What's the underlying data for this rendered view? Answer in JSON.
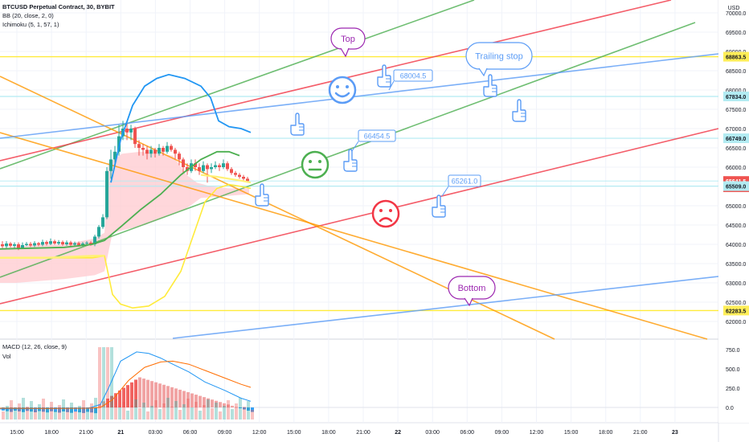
{
  "header": {
    "title": "BTCUSD Perpetual Contract, 30, BYBIT",
    "indicator_bb": "BB (20, close, 2, 0)",
    "indicator_ichimoku": "Ichimoku (5, 1, 57, 1)"
  },
  "price_axis": {
    "unit": "USD",
    "ticks": [
      "70000.0",
      "69500.0",
      "69000.0",
      "68500.0",
      "68000.0",
      "67500.0",
      "67000.0",
      "66500.0",
      "66000.0",
      "65500.0",
      "65000.0",
      "64500.0",
      "64000.0",
      "63500.0",
      "63000.0",
      "62500.0",
      "62000.0"
    ],
    "tick_values": [
      70000,
      69500,
      69000,
      68500,
      68000,
      67500,
      67000,
      66500,
      66000,
      65500,
      65000,
      64500,
      64000,
      63500,
      63000,
      62500,
      62000
    ],
    "range": [
      61750,
      70250
    ],
    "labels": [
      {
        "text": "68863.5",
        "value": 68863.5,
        "bg": "#ffee58",
        "fg": "#131722"
      },
      {
        "text": "67834.0",
        "value": 67834.0,
        "bg": "#b2ebf2",
        "fg": "#131722"
      },
      {
        "text": "66749.0",
        "value": 66749.0,
        "bg": "#b2ebf2",
        "fg": "#131722"
      },
      {
        "text": "65641.5",
        "value": 65641.5,
        "bg": "#ef5350",
        "fg": "#ffffff"
      },
      {
        "text": "16:17",
        "value": 65480,
        "bg": "#ef5350",
        "fg": "#ffffff"
      },
      {
        "text": "65509.0",
        "value": 65509.0,
        "bg": "#b2ebf2",
        "fg": "#131722"
      },
      {
        "text": "62283.5",
        "value": 62283.5,
        "bg": "#ffee58",
        "fg": "#131722"
      }
    ]
  },
  "macd_axis": {
    "ticks": [
      "750.0",
      "500.0",
      "250.0",
      "0.0"
    ],
    "tick_values": [
      750,
      500,
      250,
      0
    ]
  },
  "macd_legend": {
    "macd": "MACD (12, 26, close, 9)",
    "vol": "Vol"
  },
  "time_axis": [
    "15:00",
    "18:00",
    "21:00",
    "21",
    "03:00",
    "06:00",
    "09:00",
    "12:00",
    "15:00",
    "18:00",
    "21:00",
    "22",
    "03:00",
    "06:00",
    "09:00",
    "12:00",
    "15:00",
    "18:00",
    "21:00",
    "23"
  ],
  "annotations": {
    "top": "Top",
    "trailing_stop": "Trailing stop",
    "bottom": "Bottom",
    "price_68004": "68004.5",
    "price_66454": "66454.5",
    "price_65261": "65261.0"
  },
  "colors": {
    "up": "#26a69a",
    "down": "#ef5350",
    "bb_basis": "#2962ff",
    "bb_upper": "#2196f3",
    "bb_lower": "#ffeb3b",
    "green_line": "#4caf50",
    "red_line": "#f23645",
    "orange_line": "#ff9800",
    "blue_line": "#5b9cf6",
    "yellow_line": "#ffeb3b",
    "callout_purple": "#9c27b0",
    "callout_blue": "#5b9cf6",
    "macd_line": "#2196f3",
    "signal_line": "#ff6d00"
  },
  "icons": [
    "smiley-happy-icon",
    "smiley-neutral-icon",
    "smiley-sad-icon",
    "pointing-hand-icon"
  ]
}
